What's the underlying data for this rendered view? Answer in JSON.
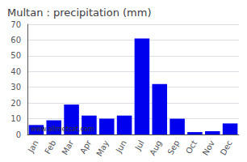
{
  "chart_data": {
    "type": "bar",
    "title": "Multan : precipitation (mm)",
    "categories": [
      "Jan",
      "Feb",
      "Mar",
      "Apr",
      "May",
      "Jun",
      "Jul",
      "Aug",
      "Sep",
      "Oct",
      "Nov",
      "Dec"
    ],
    "values": [
      6,
      9,
      19,
      12,
      10,
      12,
      61,
      32,
      10,
      1.5,
      2,
      7
    ],
    "color": "#0000ee",
    "ylim": [
      0,
      70
    ],
    "yticks": [
      0,
      10,
      20,
      30,
      40,
      50,
      60,
      70
    ],
    "grid": true,
    "annotations": [
      "www.allmetsat.com"
    ]
  }
}
